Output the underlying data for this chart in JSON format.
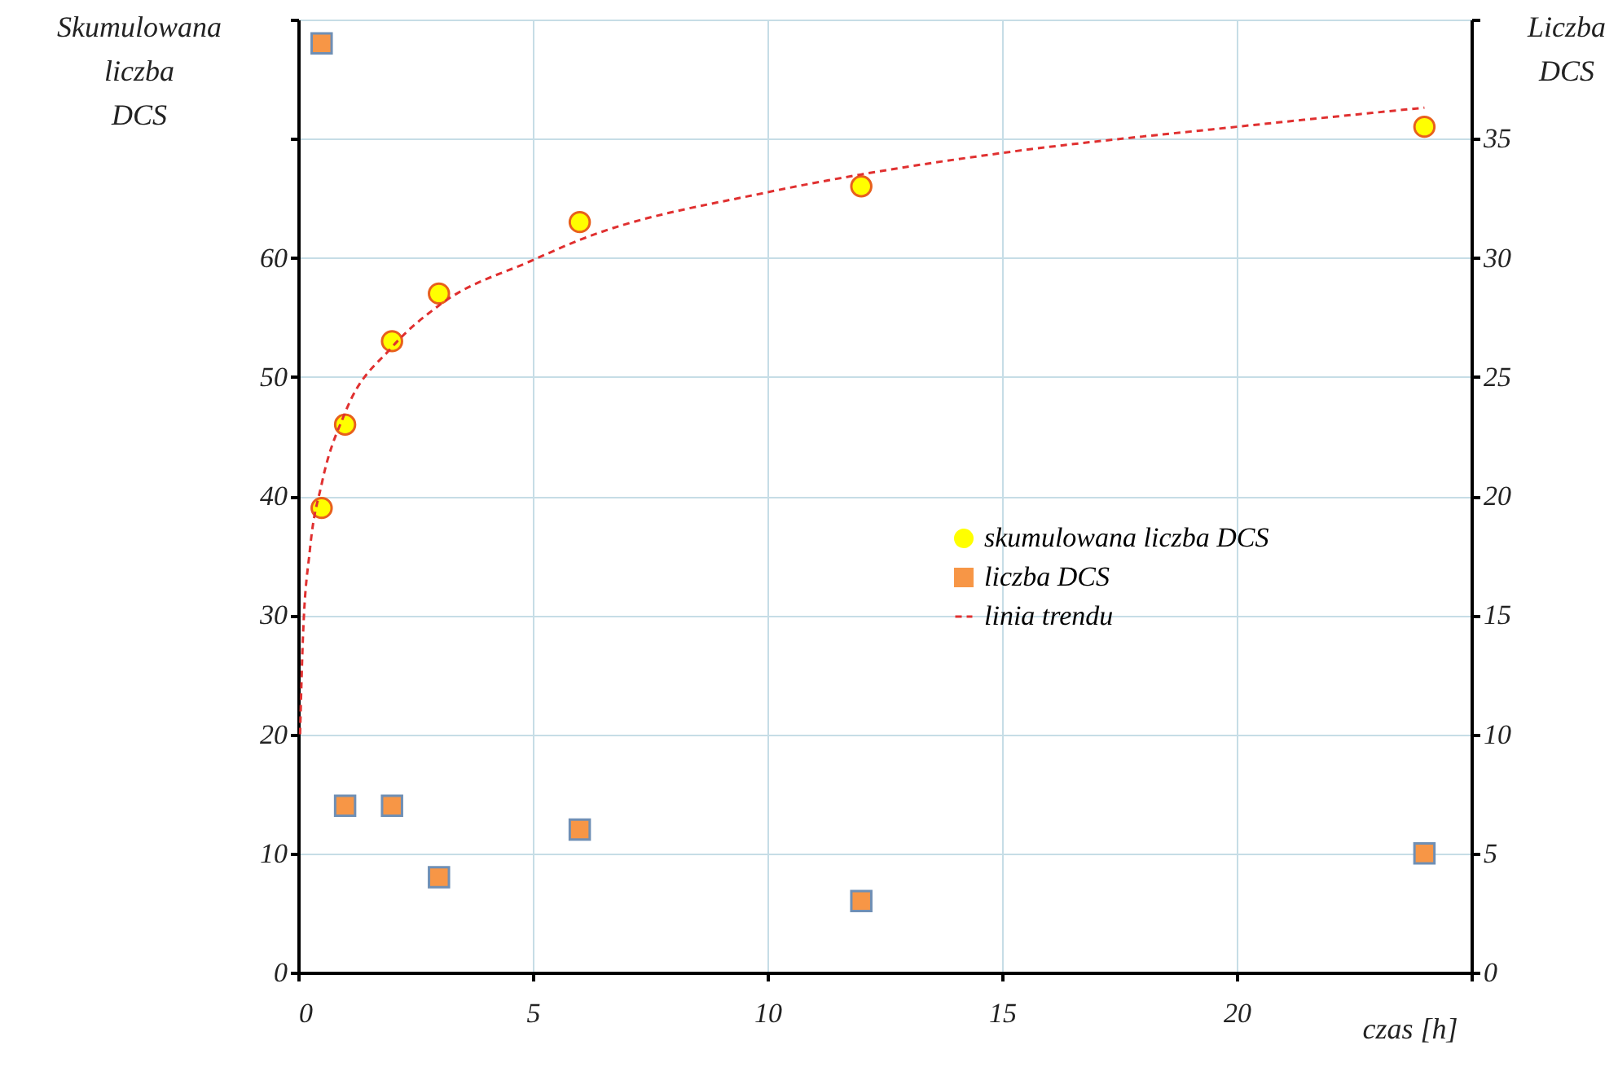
{
  "chart_data": {
    "type": "scatter",
    "xlabel": "czas [h]",
    "ylabel": "Skumulowana liczba DCS",
    "y2label": "Liczba DCS",
    "xlim": [
      0,
      25
    ],
    "xticks": [
      0,
      5,
      10,
      15,
      20,
      {
        "value": 25,
        "label": null
      }
    ],
    "ylim": [
      0,
      80
    ],
    "yticks": [
      0,
      10,
      20,
      30,
      40,
      50,
      60,
      {
        "value": 70,
        "label": null
      },
      {
        "value": 80,
        "label": null
      }
    ],
    "y2lim": [
      0,
      40
    ],
    "y2ticks": [
      0,
      5,
      10,
      15,
      20,
      25,
      30,
      35,
      {
        "value": 40,
        "label": null
      }
    ],
    "grid": true,
    "legend": "right",
    "series": [
      {
        "name": "skumulowana liczba DCS",
        "marker": "circle",
        "color": "#ffff00",
        "x": [
          0.5,
          1,
          2,
          3,
          6,
          12,
          24
        ],
        "values": [
          39,
          46,
          53,
          57,
          63,
          66,
          71
        ]
      },
      {
        "name": "liczba DCS",
        "marker": "square",
        "color": "#f79646",
        "axis": "y2",
        "x": [
          0.5,
          1,
          2,
          3,
          6,
          12,
          24
        ],
        "values": [
          39,
          7,
          7,
          4,
          6,
          3,
          5
        ]
      },
      {
        "name": "linia trendu",
        "type": "line",
        "marker": "none",
        "line_style": "dashed",
        "color": "#e03030",
        "x": [
          0.04,
          0.1,
          0.25,
          0.5,
          1,
          2,
          3,
          5,
          6,
          10,
          12,
          15,
          20,
          24
        ],
        "values": [
          20,
          28,
          35.5,
          41,
          47,
          52.5,
          56,
          59.8,
          61.5,
          65.5,
          67,
          68.8,
          71,
          72.6
        ]
      }
    ]
  }
}
